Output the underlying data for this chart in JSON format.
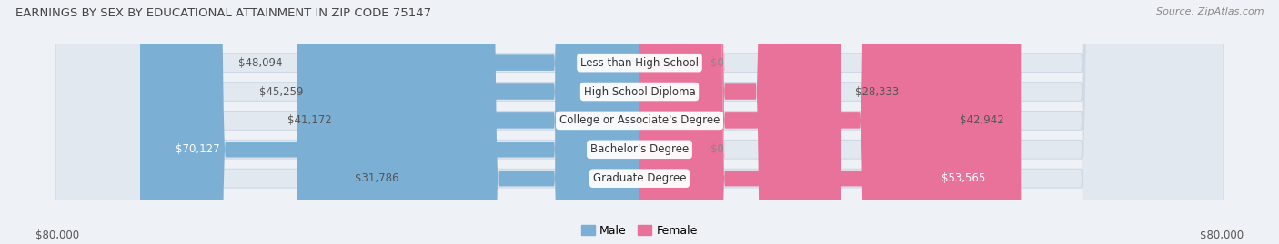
{
  "title": "EARNINGS BY SEX BY EDUCATIONAL ATTAINMENT IN ZIP CODE 75147",
  "source": "Source: ZipAtlas.com",
  "categories": [
    "Less than High School",
    "High School Diploma",
    "College or Associate's Degree",
    "Bachelor's Degree",
    "Graduate Degree"
  ],
  "male_values": [
    48094,
    45259,
    41172,
    70127,
    31786
  ],
  "female_values": [
    0,
    28333,
    42942,
    0,
    53565
  ],
  "male_color": "#7bafd4",
  "female_color": "#e8729a",
  "male_zero_color": "#b8d4ea",
  "female_zero_color": "#f4b0c8",
  "male_label": "Male",
  "female_label": "Female",
  "axis_max": 80000,
  "zero_stub": 8000,
  "left_label": "$80,000",
  "right_label": "$80,000",
  "bg_color": "#eef2f6",
  "bar_bg_color": "#e2e8f0",
  "bar_bg_outline": "#d0d8e4",
  "label_fontsize": 8.5,
  "title_fontsize": 9.5,
  "source_fontsize": 8,
  "cat_label_fontsize": 8.5
}
